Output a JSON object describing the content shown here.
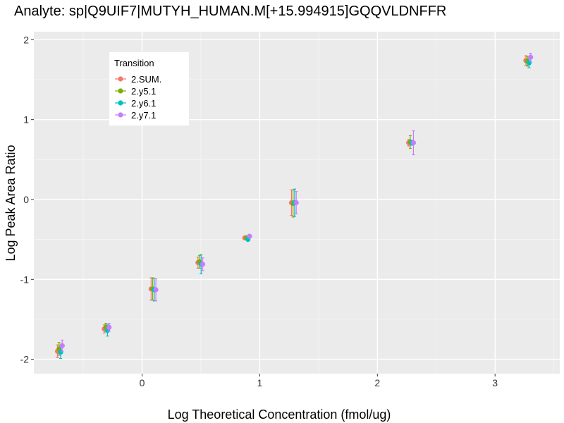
{
  "chart_data": {
    "type": "scatter",
    "title": "Analyte: sp|Q9UIF7|MUTYH_HUMAN.M[+15.994915]GQQVLDNFFR",
    "xlabel": "Log Theoretical Concentration (fmol/ug)",
    "ylabel": "Log Peak Area Ratio",
    "xlim": [
      -0.92,
      3.55
    ],
    "ylim": [
      -2.18,
      2.1
    ],
    "xticks": [
      0,
      1,
      2,
      3
    ],
    "yticks": [
      -2,
      -1,
      0,
      1,
      2
    ],
    "xtick_labels": [
      "0",
      "1",
      "2",
      "3"
    ],
    "ytick_labels": [
      "-2",
      "-1",
      "0",
      "1",
      "2"
    ],
    "grid": true,
    "legend": {
      "title": "Transition",
      "position": "top-left"
    },
    "series": [
      {
        "name": "2.SUM.",
        "color": "#F8766D",
        "points": [
          {
            "x": -0.699,
            "y": -1.9,
            "err": 0.08
          },
          {
            "x": -0.301,
            "y": -1.62,
            "err": 0.05
          },
          {
            "x": 0.097,
            "y": -1.12,
            "err": 0.14
          },
          {
            "x": 0.495,
            "y": -0.79,
            "err": 0.07
          },
          {
            "x": 0.893,
            "y": -0.48,
            "err": 0.01
          },
          {
            "x": 1.29,
            "y": -0.04,
            "err": 0.16
          },
          {
            "x": 2.286,
            "y": 0.71,
            "err": 0.04
          },
          {
            "x": 3.282,
            "y": 1.74,
            "err": 0.06
          }
        ]
      },
      {
        "name": "2.y5.1",
        "color": "#7CAE00",
        "points": [
          {
            "x": -0.699,
            "y": -1.87,
            "err": 0.08
          },
          {
            "x": -0.301,
            "y": -1.6,
            "err": 0.05
          },
          {
            "x": 0.097,
            "y": -1.12,
            "err": 0.14
          },
          {
            "x": 0.495,
            "y": -0.78,
            "err": 0.08
          },
          {
            "x": 0.893,
            "y": -0.48,
            "err": 0.01
          },
          {
            "x": 1.29,
            "y": -0.05,
            "err": 0.17
          },
          {
            "x": 2.286,
            "y": 0.72,
            "err": 0.08
          },
          {
            "x": 3.282,
            "y": 1.73,
            "err": 0.06
          }
        ]
      },
      {
        "name": "2.y6.1",
        "color": "#00BFC4",
        "points": [
          {
            "x": -0.699,
            "y": -1.91,
            "err": 0.08
          },
          {
            "x": -0.301,
            "y": -1.64,
            "err": 0.07
          },
          {
            "x": 0.097,
            "y": -1.13,
            "err": 0.14
          },
          {
            "x": 0.495,
            "y": -0.81,
            "err": 0.12
          },
          {
            "x": 0.893,
            "y": -0.5,
            "err": 0.01
          },
          {
            "x": 1.29,
            "y": -0.04,
            "err": 0.17
          },
          {
            "x": 2.286,
            "y": 0.71,
            "err": 0.03
          },
          {
            "x": 3.282,
            "y": 1.71,
            "err": 0.06
          }
        ]
      },
      {
        "name": "2.y7.1",
        "color": "#C77CFF",
        "points": [
          {
            "x": -0.699,
            "y": -1.83,
            "err": 0.07
          },
          {
            "x": -0.301,
            "y": -1.6,
            "err": 0.05
          },
          {
            "x": 0.097,
            "y": -1.13,
            "err": 0.14
          },
          {
            "x": 0.495,
            "y": -0.81,
            "err": 0.08
          },
          {
            "x": 0.893,
            "y": -0.46,
            "err": 0.01
          },
          {
            "x": 1.29,
            "y": -0.04,
            "err": 0.14
          },
          {
            "x": 2.286,
            "y": 0.71,
            "err": 0.15
          },
          {
            "x": 3.282,
            "y": 1.78,
            "err": 0.05
          }
        ]
      }
    ]
  }
}
